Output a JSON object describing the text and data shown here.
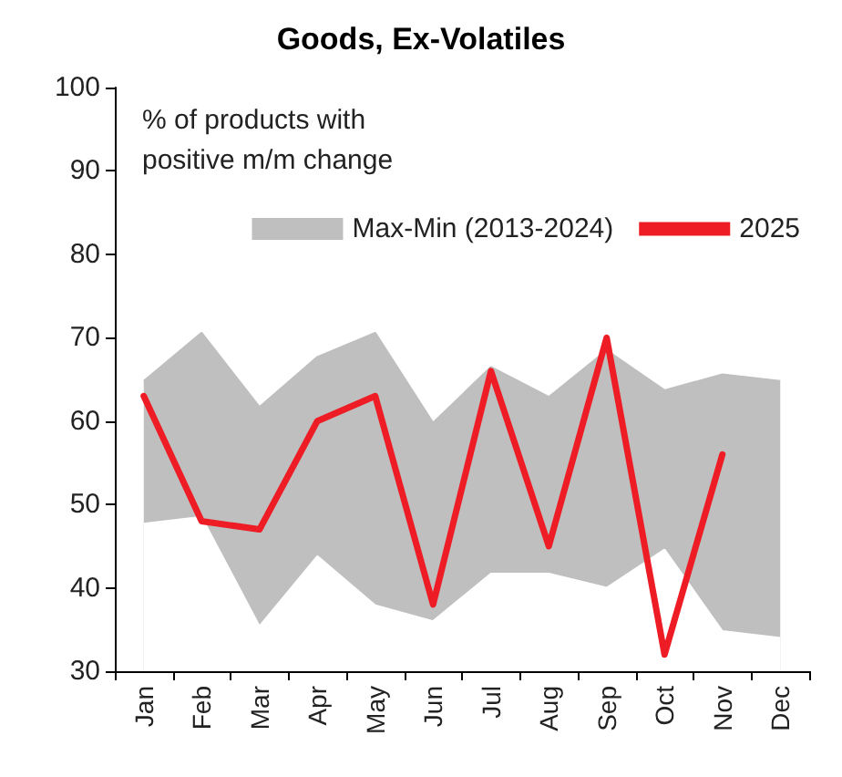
{
  "chart_data": {
    "type": "line",
    "title": "Goods, Ex-Volatiles",
    "annotations": [
      "% of products with\npositive m/m change"
    ],
    "categories": [
      "Jan",
      "Feb",
      "Mar",
      "Apr",
      "May",
      "Jun",
      "Jul",
      "Aug",
      "Sep",
      "Oct",
      "Nov",
      "Dec"
    ],
    "series": [
      {
        "name": "Max-Min (2013-2024)",
        "type": "area",
        "color": "#bfbfbf",
        "values": [
          64.8,
          70.6,
          61.7,
          67.7,
          70.6,
          59.8,
          66.5,
          62.9,
          68.5,
          63.7,
          65.6,
          64.8
        ]
      },
      {
        "type": "area",
        "color": "#ffffff",
        "values": [
          47.7,
          48.5,
          35.4,
          43.8,
          37.9,
          36,
          41.7,
          41.7,
          40,
          44.6,
          34.8,
          34
        ]
      },
      {
        "name": "2025",
        "color": "#ee1c25",
        "values": [
          63,
          48,
          47,
          60,
          63,
          38,
          66,
          45,
          70,
          32,
          56,
          null
        ]
      }
    ],
    "ylim": [
      30,
      100
    ],
    "yticks": [
      30,
      40,
      50,
      60,
      70,
      80,
      90,
      100
    ],
    "grid": false,
    "legend": "top right",
    "marker": "none",
    "line_style": "solid"
  }
}
